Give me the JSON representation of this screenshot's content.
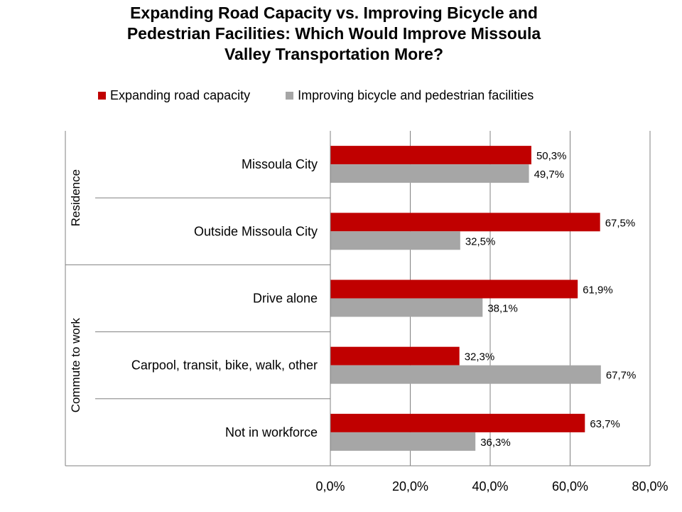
{
  "colors": {
    "series1": "#c00000",
    "series2": "#a6a6a6",
    "grid": "#808080"
  },
  "chart_data": {
    "type": "bar",
    "orientation": "horizontal",
    "title": [
      "Expanding Road Capacity vs. Improving Bicycle and",
      "Pedestrian Facilities:  Which Would Improve Missoula",
      "Valley Transportation More?"
    ],
    "groups": [
      {
        "label": "Residence",
        "categories": [
          "Missoula City",
          "Outside Missoula City"
        ]
      },
      {
        "label": "Commute to work",
        "categories": [
          "Drive alone",
          "Carpool, transit, bike, walk, other",
          "Not in workforce"
        ]
      }
    ],
    "categories": [
      "Missoula City",
      "Outside Missoula City",
      "Drive alone",
      "Carpool, transit, bike, walk, other",
      "Not in workforce"
    ],
    "series": [
      {
        "name": "Expanding road capacity",
        "values": [
          50.3,
          67.5,
          61.9,
          32.3,
          63.7
        ],
        "labels": [
          "50,3%",
          "67,5%",
          "61,9%",
          "32,3%",
          "63,7%"
        ]
      },
      {
        "name": "Improving bicycle and pedestrian facilities",
        "values": [
          49.7,
          32.5,
          38.1,
          67.7,
          36.3
        ],
        "labels": [
          "49,7%",
          "32,5%",
          "38,1%",
          "67,7%",
          "36,3%"
        ]
      }
    ],
    "xlim": [
      0,
      80
    ],
    "xticks": [
      0,
      20,
      40,
      60,
      80
    ],
    "xtick_labels": [
      "0,0%",
      "20,0%",
      "40,0%",
      "60,0%",
      "80,0%"
    ],
    "grid": true,
    "legend_position": "top"
  }
}
